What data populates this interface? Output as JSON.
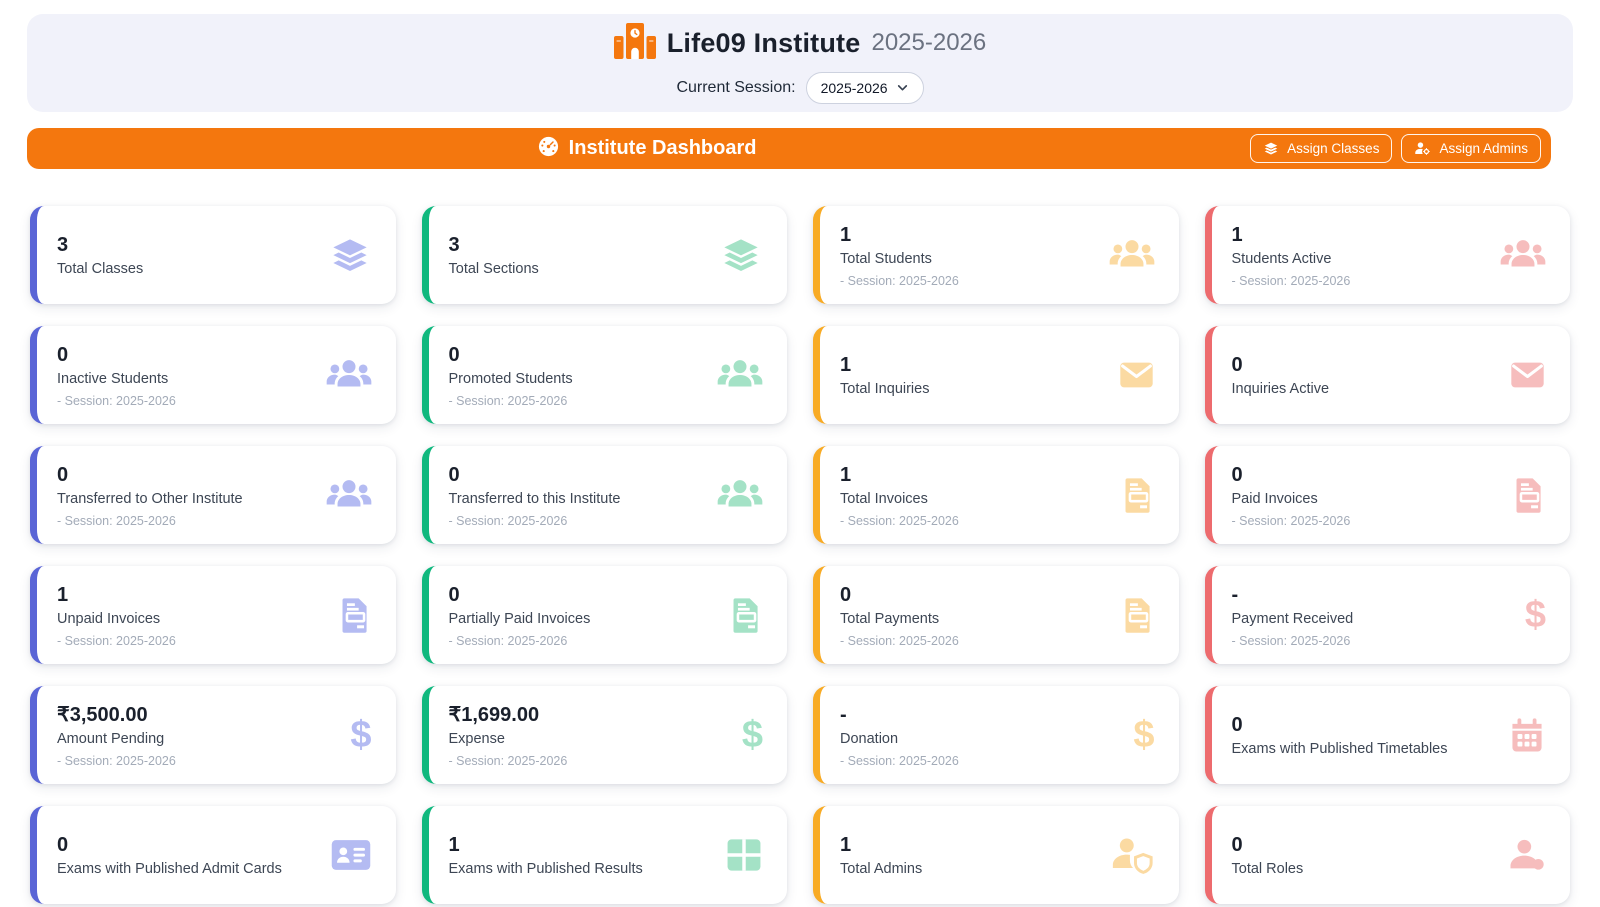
{
  "header": {
    "logo_icon": "school-icon",
    "institute_name": "Life09 Institute",
    "session_year": "2025-2026",
    "current_session_label": "Current Session:",
    "session_dropdown_value": "2025-2026",
    "session_dropdown_icon": "chevron-down-icon"
  },
  "toolbar": {
    "title": "Institute Dashboard",
    "title_icon": "gauge-icon",
    "accent_color": "#f4770e",
    "assign_classes_label": "Assign Classes",
    "assign_classes_icon": "layers-icon",
    "assign_admins_label": "Assign Admins",
    "assign_admins_icon": "user-gear-icon"
  },
  "colors": {
    "indigo": {
      "accent": "#5a65d6",
      "icon": "#b4bbf2"
    },
    "green": {
      "accent": "#10b87e",
      "icon": "#a4e2c6"
    },
    "amber": {
      "accent": "#f8ab25",
      "icon": "#fbdaa2"
    },
    "red": {
      "accent": "#ed6b6e",
      "icon": "#f6bdbd"
    }
  },
  "cards": [
    {
      "value": "3",
      "label": "Total Classes",
      "session": "",
      "color": "indigo",
      "icon": "layers"
    },
    {
      "value": "3",
      "label": "Total Sections",
      "session": "",
      "color": "green",
      "icon": "layers"
    },
    {
      "value": "1",
      "label": "Total Students",
      "session": "- Session: 2025-2026",
      "color": "amber",
      "icon": "users"
    },
    {
      "value": "1",
      "label": "Students Active",
      "session": "- Session: 2025-2026",
      "color": "red",
      "icon": "users"
    },
    {
      "value": "0",
      "label": "Inactive Students",
      "session": "- Session: 2025-2026",
      "color": "indigo",
      "icon": "users"
    },
    {
      "value": "0",
      "label": "Promoted Students",
      "session": "- Session: 2025-2026",
      "color": "green",
      "icon": "users"
    },
    {
      "value": "1",
      "label": "Total Inquiries",
      "session": "",
      "color": "amber",
      "icon": "envelope"
    },
    {
      "value": "0",
      "label": "Inquiries Active",
      "session": "",
      "color": "red",
      "icon": "envelope"
    },
    {
      "value": "0",
      "label": "Transferred to Other Institute",
      "session": "- Session: 2025-2026",
      "color": "indigo",
      "icon": "users"
    },
    {
      "value": "0",
      "label": "Transferred to this Institute",
      "session": "- Session: 2025-2026",
      "color": "green",
      "icon": "users"
    },
    {
      "value": "1",
      "label": "Total Invoices",
      "session": "- Session: 2025-2026",
      "color": "amber",
      "icon": "file-invoice"
    },
    {
      "value": "0",
      "label": "Paid Invoices",
      "session": "- Session: 2025-2026",
      "color": "red",
      "icon": "file-invoice"
    },
    {
      "value": "1",
      "label": "Unpaid Invoices",
      "session": "- Session: 2025-2026",
      "color": "indigo",
      "icon": "file-invoice"
    },
    {
      "value": "0",
      "label": "Partially Paid Invoices",
      "session": "- Session: 2025-2026",
      "color": "green",
      "icon": "file-invoice"
    },
    {
      "value": "0",
      "label": "Total Payments",
      "session": "- Session: 2025-2026",
      "color": "amber",
      "icon": "file-invoice"
    },
    {
      "value": "-",
      "label": "Payment Received",
      "session": "- Session: 2025-2026",
      "color": "red",
      "icon": "dollar"
    },
    {
      "value": "₹3,500.00",
      "label": "Amount Pending",
      "session": "- Session: 2025-2026",
      "color": "indigo",
      "icon": "dollar"
    },
    {
      "value": "₹1,699.00",
      "label": "Expense",
      "session": "- Session: 2025-2026",
      "color": "green",
      "icon": "dollar"
    },
    {
      "value": "-",
      "label": "Donation",
      "session": "- Session: 2025-2026",
      "color": "amber",
      "icon": "dollar"
    },
    {
      "value": "0",
      "label": "Exams with Published Timetables",
      "session": "",
      "color": "red",
      "icon": "calendar"
    },
    {
      "value": "0",
      "label": "Exams with Published Admit Cards",
      "session": "",
      "color": "indigo",
      "icon": "id-card"
    },
    {
      "value": "1",
      "label": "Exams with Published Results",
      "session": "",
      "color": "green",
      "icon": "table"
    },
    {
      "value": "1",
      "label": "Total Admins",
      "session": "",
      "color": "amber",
      "icon": "user-shield"
    },
    {
      "value": "0",
      "label": "Total Roles",
      "session": "",
      "color": "red",
      "icon": "user"
    }
  ]
}
